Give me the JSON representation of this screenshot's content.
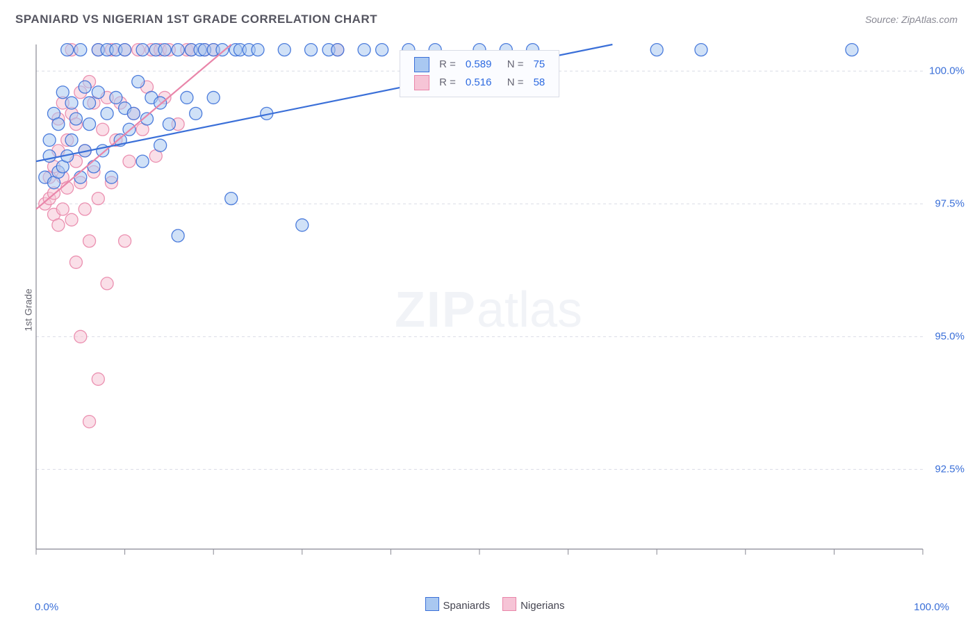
{
  "title": "SPANIARD VS NIGERIAN 1ST GRADE CORRELATION CHART",
  "source": "Source: ZipAtlas.com",
  "ylabel": "1st Grade",
  "watermark": {
    "bold": "ZIP",
    "rest": "atlas"
  },
  "colors": {
    "blue_stroke": "#3a6fd8",
    "blue_fill": "#a9c8f1",
    "pink_stroke": "#e985a9",
    "pink_fill": "#f6c4d6",
    "grid": "#d9dce6",
    "axis": "#888893",
    "text": "#555560"
  },
  "chart": {
    "type": "scatter",
    "xlim": [
      0,
      100
    ],
    "ylim": [
      91,
      100.5
    ],
    "x_ticks_minor": [
      0,
      10,
      20,
      30,
      40,
      50,
      60,
      70,
      80,
      90,
      100
    ],
    "y_gridlines": [
      92.5,
      95.0,
      97.5,
      100.0
    ],
    "y_tick_labels": [
      "92.5%",
      "95.0%",
      "97.5%",
      "100.0%"
    ],
    "x_min_label": "0.0%",
    "x_max_label": "100.0%",
    "marker_radius": 9,
    "marker_opacity": 0.55,
    "line_width": 2.2,
    "series": [
      {
        "name": "Spaniards",
        "color_stroke": "#3a6fd8",
        "color_fill": "#a9c8f1",
        "R": "0.589",
        "N": "75",
        "trend": {
          "x1": 0,
          "y1": 98.3,
          "x2": 65,
          "y2": 100.5
        },
        "points": [
          [
            1,
            98.0
          ],
          [
            1.5,
            98.4
          ],
          [
            1.5,
            98.7
          ],
          [
            2,
            99.2
          ],
          [
            2,
            97.9
          ],
          [
            2.5,
            98.1
          ],
          [
            2.5,
            99.0
          ],
          [
            3,
            98.2
          ],
          [
            3,
            99.6
          ],
          [
            3.5,
            98.4
          ],
          [
            3.5,
            100.4
          ],
          [
            4,
            98.7
          ],
          [
            4,
            99.4
          ],
          [
            4.5,
            99.1
          ],
          [
            5,
            98.0
          ],
          [
            5,
            100.4
          ],
          [
            5.5,
            98.5
          ],
          [
            5.5,
            99.7
          ],
          [
            6,
            99.0
          ],
          [
            6,
            99.4
          ],
          [
            6.5,
            98.2
          ],
          [
            7,
            99.6
          ],
          [
            7,
            100.4
          ],
          [
            7.5,
            98.5
          ],
          [
            8,
            99.2
          ],
          [
            8,
            100.4
          ],
          [
            8.5,
            98.0
          ],
          [
            9,
            99.5
          ],
          [
            9,
            100.4
          ],
          [
            9.5,
            98.7
          ],
          [
            10,
            99.3
          ],
          [
            10,
            100.4
          ],
          [
            10.5,
            98.9
          ],
          [
            11,
            99.2
          ],
          [
            11.5,
            99.8
          ],
          [
            12,
            98.3
          ],
          [
            12,
            100.4
          ],
          [
            12.5,
            99.1
          ],
          [
            13,
            99.5
          ],
          [
            13.5,
            100.4
          ],
          [
            14,
            98.6
          ],
          [
            14,
            99.4
          ],
          [
            14.5,
            100.4
          ],
          [
            15,
            99.0
          ],
          [
            16,
            100.4
          ],
          [
            16,
            96.9
          ],
          [
            17,
            99.5
          ],
          [
            17.5,
            100.4
          ],
          [
            18,
            99.2
          ],
          [
            18.5,
            100.4
          ],
          [
            19,
            100.4
          ],
          [
            20,
            99.5
          ],
          [
            20,
            100.4
          ],
          [
            21,
            100.4
          ],
          [
            22,
            97.6
          ],
          [
            22.5,
            100.4
          ],
          [
            23,
            100.4
          ],
          [
            24,
            100.4
          ],
          [
            25,
            100.4
          ],
          [
            26,
            99.2
          ],
          [
            28,
            100.4
          ],
          [
            30,
            97.1
          ],
          [
            31,
            100.4
          ],
          [
            33,
            100.4
          ],
          [
            34,
            100.4
          ],
          [
            37,
            100.4
          ],
          [
            39,
            100.4
          ],
          [
            42,
            100.4
          ],
          [
            45,
            100.4
          ],
          [
            50,
            100.4
          ],
          [
            53,
            100.4
          ],
          [
            56,
            100.4
          ],
          [
            70,
            100.4
          ],
          [
            75,
            100.4
          ],
          [
            92,
            100.4
          ]
        ]
      },
      {
        "name": "Nigerians",
        "color_stroke": "#e985a9",
        "color_fill": "#f6c4d6",
        "R": "0.516",
        "N": "58",
        "trend": {
          "x1": 0,
          "y1": 97.4,
          "x2": 22,
          "y2": 100.5
        },
        "points": [
          [
            1,
            97.5
          ],
          [
            1.5,
            98.0
          ],
          [
            1.5,
            97.6
          ],
          [
            2,
            98.2
          ],
          [
            2,
            97.7
          ],
          [
            2,
            97.3
          ],
          [
            2.5,
            98.5
          ],
          [
            2.5,
            97.1
          ],
          [
            2.5,
            99.1
          ],
          [
            3,
            98.0
          ],
          [
            3,
            97.4
          ],
          [
            3,
            99.4
          ],
          [
            3.5,
            98.7
          ],
          [
            3.5,
            97.8
          ],
          [
            4,
            97.2
          ],
          [
            4,
            99.2
          ],
          [
            4,
            100.4
          ],
          [
            4.5,
            98.3
          ],
          [
            4.5,
            99.0
          ],
          [
            4.5,
            96.4
          ],
          [
            5,
            97.9
          ],
          [
            5,
            99.6
          ],
          [
            5,
            95.0
          ],
          [
            5.5,
            98.5
          ],
          [
            5.5,
            97.4
          ],
          [
            6,
            99.8
          ],
          [
            6,
            96.8
          ],
          [
            6,
            93.4
          ],
          [
            6.5,
            98.1
          ],
          [
            6.5,
            99.4
          ],
          [
            7,
            97.6
          ],
          [
            7,
            100.4
          ],
          [
            7,
            94.2
          ],
          [
            7.5,
            98.9
          ],
          [
            8,
            99.5
          ],
          [
            8,
            96.0
          ],
          [
            8.5,
            97.9
          ],
          [
            8.5,
            100.4
          ],
          [
            9,
            98.7
          ],
          [
            9.5,
            99.4
          ],
          [
            10,
            100.4
          ],
          [
            10,
            96.8
          ],
          [
            10.5,
            98.3
          ],
          [
            11,
            99.2
          ],
          [
            11.5,
            100.4
          ],
          [
            12,
            98.9
          ],
          [
            12.5,
            99.7
          ],
          [
            13,
            100.4
          ],
          [
            13.5,
            98.4
          ],
          [
            14,
            100.4
          ],
          [
            14.5,
            99.5
          ],
          [
            15,
            100.4
          ],
          [
            16,
            99.0
          ],
          [
            17,
            100.4
          ],
          [
            17.5,
            100.4
          ],
          [
            19,
            100.4
          ],
          [
            20,
            100.4
          ],
          [
            34,
            100.4
          ]
        ]
      }
    ]
  },
  "bottom_legend": {
    "items": [
      {
        "label": "Spaniards",
        "fill": "#a9c8f1",
        "stroke": "#3a6fd8"
      },
      {
        "label": "Nigerians",
        "fill": "#f6c4d6",
        "stroke": "#e985a9"
      }
    ]
  }
}
